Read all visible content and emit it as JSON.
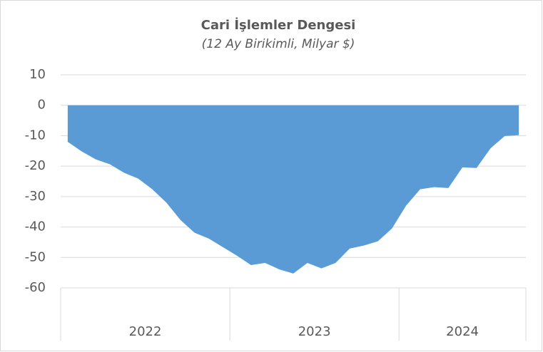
{
  "chart_data": {
    "type": "area",
    "title": "Cari İşlemler Dengesi",
    "subtitle": "(12 Ay Birikimli, Milyar $)",
    "categories": [
      null,
      null,
      null,
      null,
      null,
      null,
      null,
      null,
      null,
      null,
      null,
      null,
      null,
      null,
      null,
      null,
      null,
      null,
      null,
      null,
      null,
      null,
      null,
      null,
      null,
      null,
      null,
      null,
      null,
      null,
      null,
      null,
      null
    ],
    "groups": [
      {
        "label": "2022",
        "size": 12
      },
      {
        "label": "2023",
        "size": 12
      },
      {
        "label": "2024",
        "size": 9
      }
    ],
    "series": [
      {
        "name": "Cari İşlemler Dengesi",
        "color": "#5b9bd5",
        "values": [
          -12,
          -15.2,
          -17.8,
          -19.4,
          -22.2,
          -24.1,
          -27.6,
          -32,
          -37.7,
          -41.9,
          -43.8,
          -46.6,
          -49.4,
          -52.5,
          -51.8,
          -53.9,
          -55.3,
          -51.8,
          -53.6,
          -51.8,
          -47.1,
          -46.1,
          -44.7,
          -40.5,
          -33,
          -27.6,
          -26.9,
          -27.2,
          -20.4,
          -20.6,
          -14.1,
          -10.1,
          -9.8
        ]
      }
    ],
    "ylim": [
      -60,
      10
    ],
    "yticks": [
      10,
      0,
      -10,
      -20,
      -30,
      -40,
      -50,
      -60
    ],
    "grid": true
  }
}
